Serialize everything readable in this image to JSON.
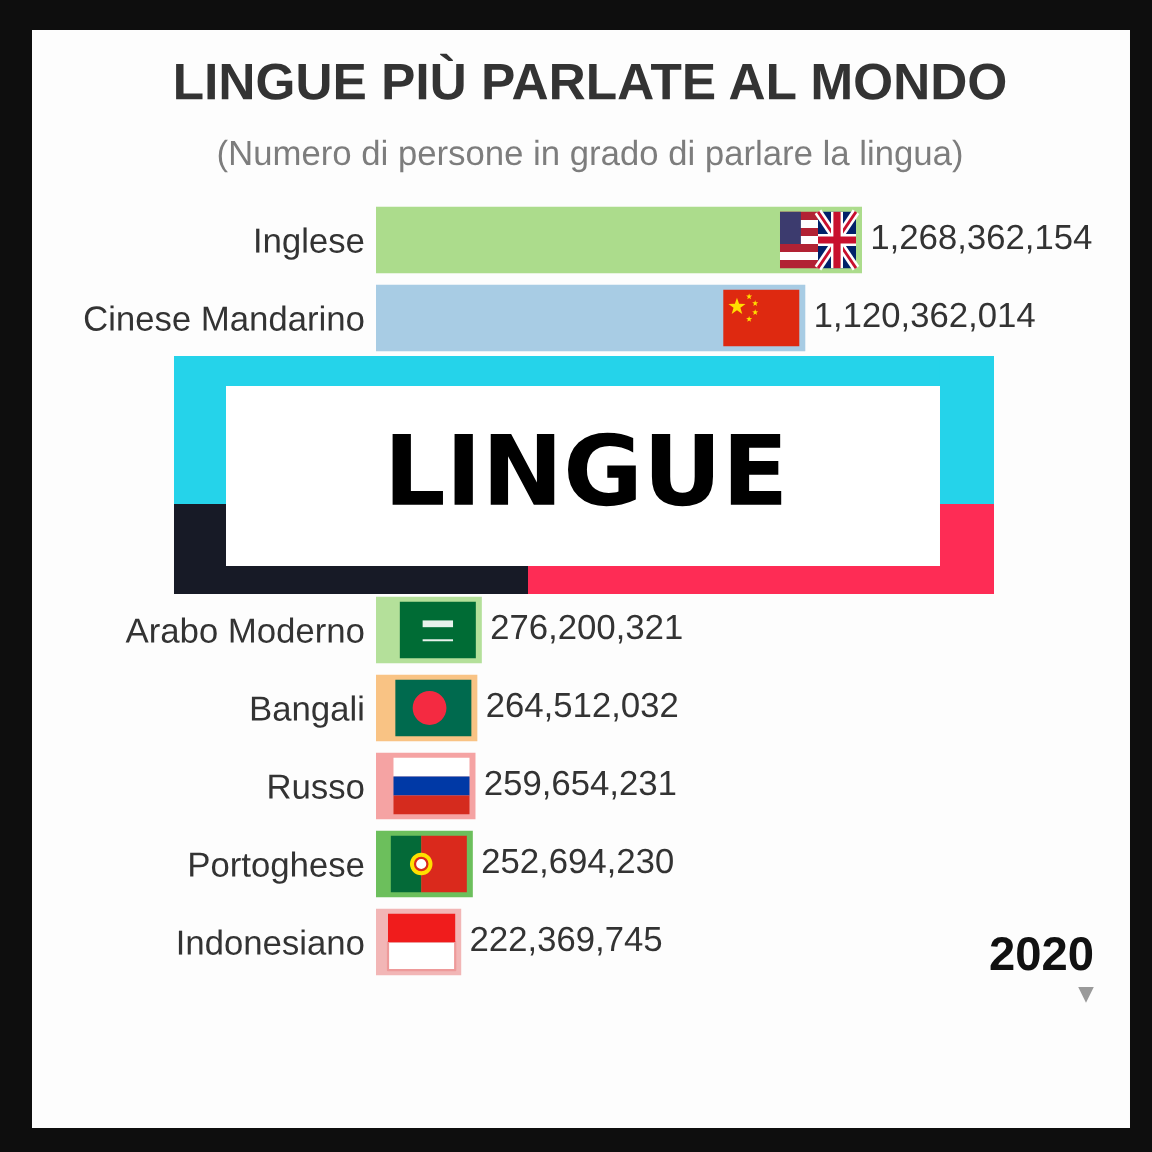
{
  "chart_data": {
    "type": "bar",
    "orientation": "horizontal",
    "title": "LINGUE PIÙ PARLATE AL MONDO",
    "subtitle": "(Numero di persone in grado di parlare la lingua)",
    "categories": [
      "Inglese",
      "Cinese Mandarino",
      null,
      null,
      null,
      "Arabo Moderno",
      "Bangali",
      "Russo",
      "Portoghese",
      "Indonesiano"
    ],
    "values": [
      1268362154,
      1120362014,
      null,
      null,
      null,
      276200321,
      264512032,
      259654231,
      252694230,
      222369745
    ],
    "value_labels": [
      "1,268,362,154",
      "1,120,362,014",
      null,
      null,
      null,
      "276,200,321",
      "264,512,032",
      "259,654,231",
      "252,694,230",
      "222,369,745"
    ],
    "colors": [
      "#acdc8c",
      "#a8cce4",
      null,
      null,
      null,
      "#b4e09a",
      "#f9c384",
      "#f5a3a3",
      "#6cbf5c",
      "#f2b6b6"
    ],
    "annotations": [
      "LINGUE",
      "2020"
    ]
  }
}
